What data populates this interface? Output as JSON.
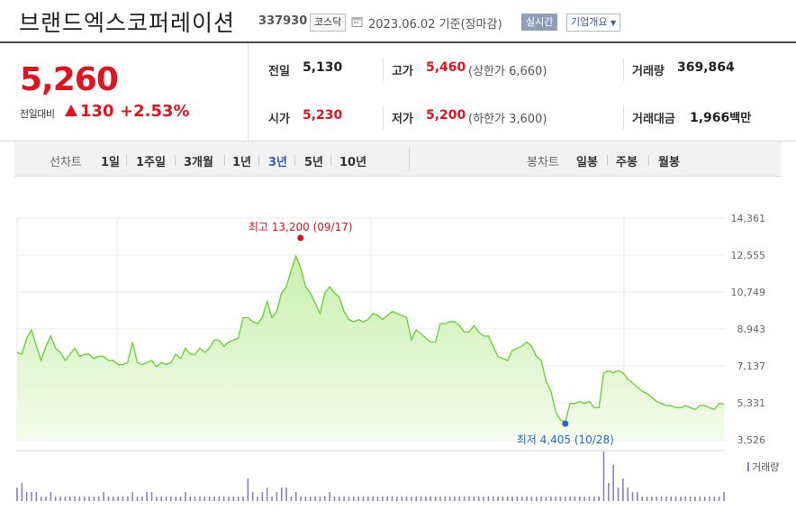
{
  "header": {
    "company_name": "브랜드엑스코퍼레이션",
    "code": "337930",
    "market": "코스닥",
    "date": "2023.06.02",
    "basis": "기준(장마감)",
    "realtime_label": "실시간",
    "overview_label": "기업개요"
  },
  "price": {
    "current": "5,260",
    "change_label": "전일대비",
    "change_value": "130",
    "change_percent": "+2.53%",
    "direction": "up"
  },
  "stats": {
    "prev_close": {
      "label": "전일",
      "value": "5,130"
    },
    "open": {
      "label": "시가",
      "value": "5,230"
    },
    "high": {
      "label": "고가",
      "value": "5,460",
      "limit_label": "상한가",
      "limit_value": "6,660"
    },
    "low": {
      "label": "저가",
      "value": "5,200",
      "limit_label": "하한가",
      "limit_value": "3,600"
    },
    "volume": {
      "label": "거래량",
      "value": "369,864"
    },
    "amount": {
      "label": "거래대금",
      "value": "1,966",
      "unit": "백만"
    }
  },
  "tabs": {
    "line_label": "선차트",
    "line": [
      "1일",
      "1주일",
      "3개월",
      "1년",
      "3년",
      "5년",
      "10년"
    ],
    "active": "3년",
    "candle_label": "봉차트",
    "candle": [
      "일봉",
      "주봉",
      "월봉"
    ]
  },
  "colors": {
    "up": "#e0131f",
    "line": "#6cd13a",
    "fill_top": "#c8f0ae",
    "fill_bottom": "#f4fcec",
    "low_marker": "#2468c9",
    "volume": "#8d7fc7",
    "active_tab": "#3a5db9"
  },
  "chart_data": {
    "type": "area",
    "y_ticks": [
      "14,361",
      "12,555",
      "10,749",
      "8,943",
      "7,137",
      "5,331",
      "3,526"
    ],
    "ylim": [
      3526,
      14361
    ],
    "grid": true,
    "max_annotation": {
      "label": "최고",
      "value": "13,200",
      "date": "(09/17)"
    },
    "min_annotation": {
      "label": "최저",
      "value": "4,405",
      "date": "(10/28)"
    },
    "volume_label": "거래량",
    "values": [
      7800,
      7700,
      8500,
      8900,
      8100,
      7400,
      8100,
      8600,
      8000,
      7800,
      7400,
      7700,
      8000,
      7600,
      7700,
      7700,
      7500,
      7600,
      7600,
      7400,
      7400,
      7200,
      7200,
      7300,
      8300,
      7300,
      7200,
      7300,
      7400,
      7100,
      7300,
      7200,
      7300,
      7700,
      7500,
      8000,
      7700,
      7700,
      8000,
      7800,
      8000,
      8400,
      8400,
      8100,
      8300,
      8400,
      8500,
      9500,
      9500,
      9300,
      9200,
      9500,
      10300,
      9500,
      9800,
      10700,
      11000,
      11800,
      12500,
      11900,
      11000,
      10700,
      10200,
      9700,
      10700,
      11000,
      10700,
      10500,
      9800,
      9400,
      9300,
      9400,
      9300,
      9400,
      9700,
      9600,
      9400,
      9600,
      9800,
      9700,
      9600,
      9500,
      8400,
      8900,
      8700,
      8500,
      8300,
      8300,
      9200,
      9200,
      9300,
      9300,
      9100,
      8800,
      8800,
      9100,
      8800,
      8600,
      8600,
      8100,
      7600,
      7500,
      7400,
      7900,
      8000,
      8100,
      8300,
      8100,
      7600,
      7400,
      6400,
      5900,
      4900,
      4500,
      4400,
      5300,
      5300,
      5400,
      5300,
      5400,
      5100,
      5100,
      6800,
      6900,
      6800,
      6900,
      6800,
      6500,
      6300,
      6100,
      5900,
      5800,
      5600,
      5400,
      5300,
      5200,
      5200,
      5100,
      5100,
      5200,
      5100,
      5000,
      5200,
      5200,
      5100,
      5000,
      5300,
      5260
    ],
    "volume_values": [
      3,
      4,
      2,
      2,
      2,
      1,
      1,
      2,
      1,
      1,
      1,
      1,
      1,
      1,
      1,
      1,
      1,
      1,
      2,
      1,
      1,
      1,
      1,
      1,
      2,
      1,
      1,
      2,
      2,
      1,
      1,
      1,
      1,
      1,
      1,
      2,
      1,
      1,
      1,
      1,
      1,
      1,
      1,
      1,
      1,
      1,
      1,
      1,
      5,
      2,
      1,
      2,
      3,
      1,
      2,
      3,
      3,
      1,
      2,
      1,
      1,
      1,
      1,
      1,
      1,
      2,
      1,
      1,
      1,
      1,
      1,
      1,
      1,
      1,
      1,
      1,
      1,
      1,
      1,
      1,
      1,
      1,
      1,
      1,
      1,
      1,
      1,
      1,
      1,
      1,
      1,
      1,
      1,
      1,
      1,
      1,
      1,
      1,
      1,
      1,
      1,
      1,
      1,
      1,
      1,
      1,
      1,
      1,
      1,
      1,
      1,
      1,
      1,
      1,
      1,
      1,
      1,
      1,
      1,
      1,
      1,
      1,
      11,
      4,
      8,
      3,
      5,
      3,
      2,
      2,
      1,
      1,
      1,
      1,
      1,
      1,
      1,
      1,
      1,
      1,
      1,
      1,
      1,
      1,
      1,
      1,
      1,
      2
    ]
  }
}
